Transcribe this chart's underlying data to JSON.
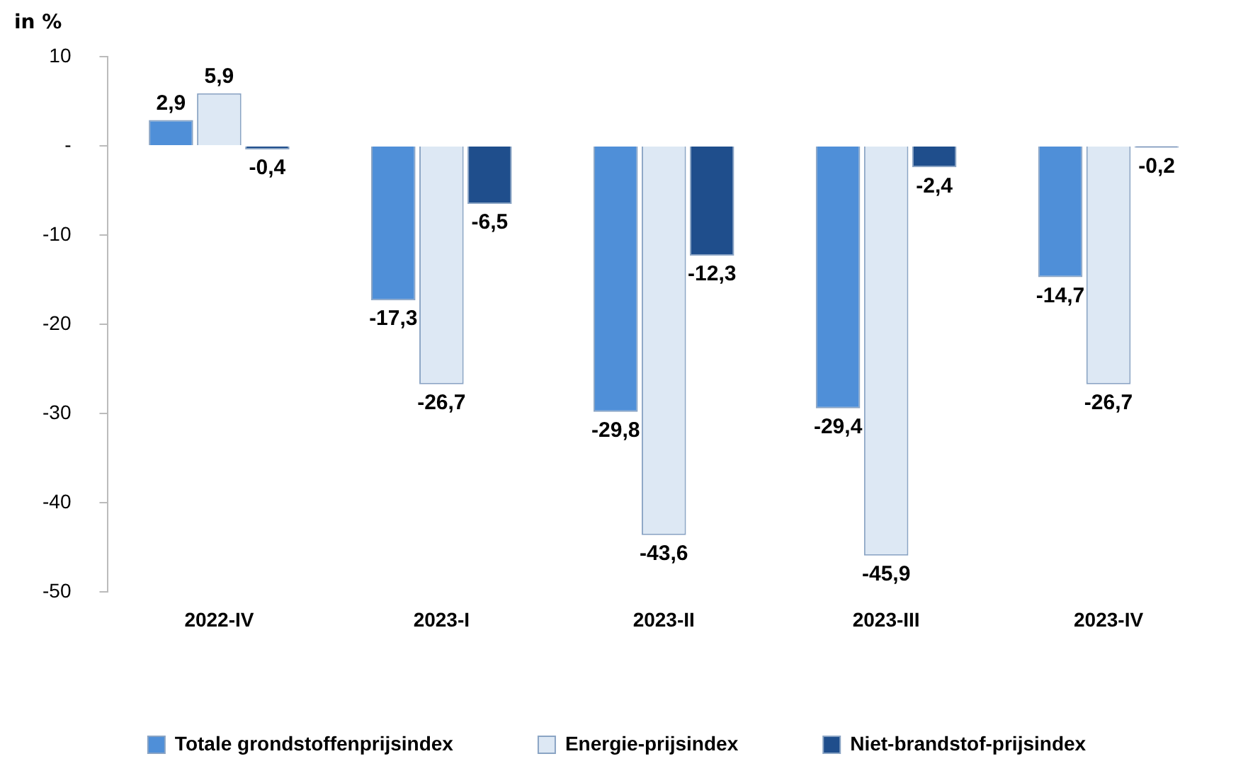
{
  "chart_data": {
    "type": "bar",
    "ylabel": "in %",
    "categories": [
      "2022-IV",
      "2023-I",
      "2023-II",
      "2023-III",
      "2023-IV"
    ],
    "series": [
      {
        "name": "Totale grondstoffenprijsindex",
        "color": "#4f8fd8",
        "values": [
          2.9,
          -17.3,
          -29.8,
          -29.4,
          -14.7
        ],
        "value_labels": [
          "2,9",
          "-17,3",
          "-29,8",
          "-29,4",
          "-14,7"
        ]
      },
      {
        "name": "Energie-prijsindex",
        "color": "#dde8f4",
        "values": [
          5.9,
          -26.7,
          -43.6,
          -45.9,
          -26.7
        ],
        "value_labels": [
          "5,9",
          "-26,7",
          "-43,6",
          "-45,9",
          "-26,7"
        ]
      },
      {
        "name": "Niet-brandstof-prijsindex",
        "color": "#1f4e8c",
        "values": [
          -0.4,
          -6.5,
          -12.3,
          -2.4,
          -0.2
        ],
        "value_labels": [
          "-0,4",
          "-6,5",
          "-12,3",
          "-2,4",
          "-0,2"
        ]
      }
    ],
    "ylim": [
      -50,
      10
    ],
    "yticks": [
      10,
      {
        "value": 0,
        "label": "-"
      },
      -10,
      -20,
      -30,
      -40,
      -50
    ],
    "grid": false,
    "legend": "bottom"
  }
}
